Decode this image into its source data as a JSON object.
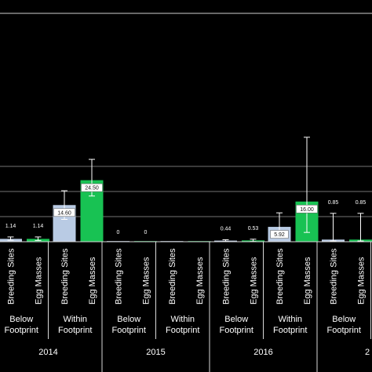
{
  "chart_data": {
    "type": "bar",
    "title": "",
    "xlabel": "",
    "ylabel": "",
    "ylim": [
      0,
      30
    ],
    "grid": true,
    "legend": "none",
    "colors": {
      "background": "#000000",
      "breeding_sites": "#b9cbe4",
      "egg_masses": "#18c253",
      "gridline": "#9a9a9a",
      "error_bar": "#ffffff"
    },
    "series": [
      {
        "name": "Breeding Sites"
      },
      {
        "name": "Egg Masses"
      }
    ],
    "groups": [
      {
        "year": "2014",
        "footprint": "Below Footprint",
        "bars": [
          {
            "series": "Breeding Sites",
            "value": 1.14,
            "label": "1.14",
            "err_low": 0.6,
            "err_high": 1.9
          },
          {
            "series": "Egg Masses",
            "value": 1.14,
            "label": "1.14",
            "err_low": 0.5,
            "err_high": 1.9
          }
        ]
      },
      {
        "year": "2014",
        "footprint": "Within Footprint",
        "bars": [
          {
            "series": "Breeding Sites",
            "value": 14.6,
            "label": "14.60",
            "err_low": 8.9,
            "err_high": 20.3
          },
          {
            "series": "Egg Masses",
            "value": 24.5,
            "label": "24.50",
            "err_low": 18.2,
            "err_high": 32.8
          }
        ]
      },
      {
        "year": "2015",
        "footprint": "Below Footprint",
        "bars": [
          {
            "series": "Breeding Sites",
            "value": 0,
            "label": "0"
          },
          {
            "series": "Egg Masses",
            "value": 0,
            "label": "0"
          }
        ]
      },
      {
        "year": "2015",
        "footprint": "Within Footprint",
        "bars": [
          {
            "series": "Breeding Sites",
            "value": 0
          },
          {
            "series": "Egg Masses",
            "value": 0
          }
        ]
      },
      {
        "year": "2016",
        "footprint": "Below Footprint",
        "bars": [
          {
            "series": "Breeding Sites",
            "value": 0.44,
            "label": "0.44",
            "err_low": 0.1,
            "err_high": 0.8
          },
          {
            "series": "Egg Masses",
            "value": 0.53,
            "label": "0.53",
            "err_low": 0.1,
            "err_high": 1.0
          }
        ]
      },
      {
        "year": "2016",
        "footprint": "Within Footprint",
        "bars": [
          {
            "series": "Breeding Sites",
            "value": 5.92,
            "label": "5.92",
            "err_low": 2.0,
            "err_high": 11.5
          },
          {
            "series": "Egg Masses",
            "value": 16.0,
            "label": "16.00",
            "err_low": 3.7,
            "err_high": 41.6
          }
        ]
      },
      {
        "year": "",
        "footprint": "Below Footprint",
        "bars": [
          {
            "series": "Breeding Sites",
            "value": 0.85,
            "label": "0.85",
            "err_low": 0.3,
            "err_high": 11.3
          },
          {
            "series": "Egg Masses",
            "value": 0.85,
            "label": "0.85",
            "err_low": 0.3,
            "err_high": 11.3
          }
        ]
      }
    ],
    "years": [
      "2014",
      "2015",
      "2016",
      "2"
    ]
  }
}
